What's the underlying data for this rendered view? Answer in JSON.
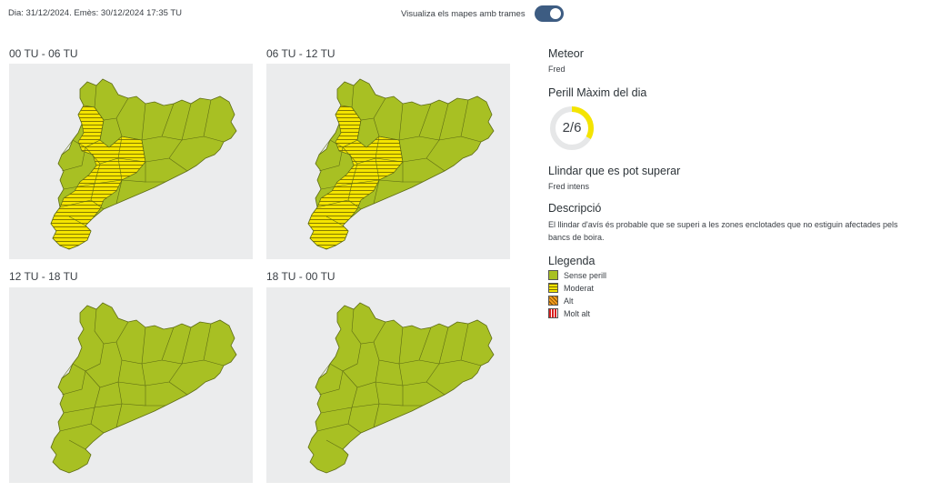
{
  "header": {
    "date_text": "Dia: 31/12/2024. Emès: 30/12/2024 17:35 TU",
    "toggle_label": "Visualiza els mapes amb trames",
    "toggle_on": true
  },
  "maps": [
    {
      "title": "00 TU - 06 TU",
      "level": "moderat-west"
    },
    {
      "title": "06 TU - 12 TU",
      "level": "moderat-west"
    },
    {
      "title": "12 TU - 18 TU",
      "level": "sense-perill"
    },
    {
      "title": "18 TU - 00 TU",
      "level": "sense-perill"
    }
  ],
  "info": {
    "meteor_heading": "Meteor",
    "meteor_value": "Fred",
    "perill_heading": "Perill Màxim del dia",
    "perill_value": "2/6",
    "perill_fraction": 0.333,
    "llindar_heading": "Llindar que es pot superar",
    "llindar_value": "Fred intens",
    "descripcio_heading": "Descripció",
    "descripcio_text": "El llindar d'avís és probable que se superi a les zones enclotades que no estiguin afectades pels bancs de boira."
  },
  "legend": {
    "heading": "Llegenda",
    "items": [
      {
        "label": "Sense perill",
        "color": "#a8c023"
      },
      {
        "label": "Moderat",
        "color": "#f4e400"
      },
      {
        "label": "Alt",
        "color": "#f29b1f"
      },
      {
        "label": "Molt alt",
        "color": "#d81f1f"
      }
    ]
  },
  "colors": {
    "green": "#a8c023",
    "yellow": "#f4e400",
    "toggle": "#3d5c82",
    "gauge": "#f4e400"
  }
}
